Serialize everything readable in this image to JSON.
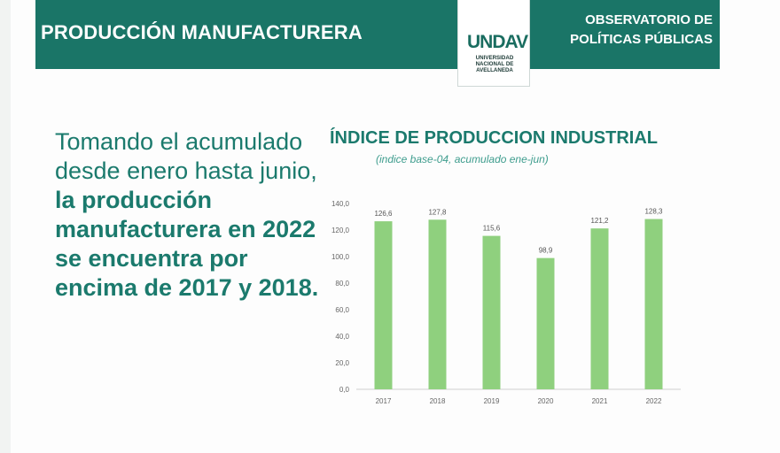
{
  "header": {
    "title": "PRODUCCIÓN MANUFACTURERA",
    "right_text": "OBSERVATORIO DE\nPOLÍTICAS PÚBLICAS",
    "logo": {
      "mark": "UNDAV",
      "caption": "UNIVERSIDAD\nNACIONAL DE\nAVELLANEDA"
    }
  },
  "lead": {
    "normal": "Tomando el acumulado desde enero hasta junio, ",
    "bold": "la producción manufacturera en 2022 se encuentra por encima de 2017 y 2018."
  },
  "colors": {
    "header_bg": "#1a7567",
    "accent_text": "#1b7a6d",
    "bar": "#8fd07e"
  },
  "chart_data": {
    "type": "bar",
    "title": "ÍNDICE DE PRODUCCION INDUSTRIAL",
    "subtitle": "(indice base-04, acumulado ene-jun)",
    "categories": [
      "2017",
      "2018",
      "2019",
      "2020",
      "2021",
      "2022"
    ],
    "values": [
      126.6,
      127.8,
      115.6,
      98.9,
      121.2,
      128.3
    ],
    "value_labels": [
      "126,6",
      "127,8",
      "115,6",
      "98,9",
      "121,2",
      "128,3"
    ],
    "ylim": [
      0,
      140
    ],
    "yticks": [
      "0,0",
      "20,0",
      "40,0",
      "60,0",
      "80,0",
      "100,0",
      "120,0",
      "140,0"
    ],
    "xlabel": "",
    "ylabel": "",
    "grid": false,
    "legend": "none"
  }
}
